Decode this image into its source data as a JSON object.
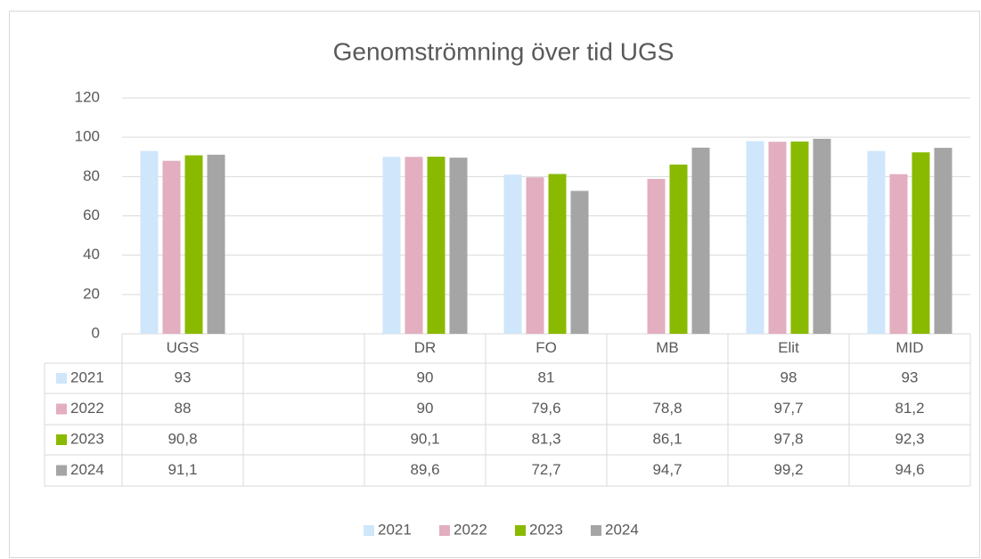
{
  "chart_data": {
    "type": "bar",
    "title": "Genomströmning över tid UGS",
    "categories": [
      "UGS",
      null,
      "DR",
      "FO",
      "MB",
      "Elit",
      "MID"
    ],
    "series": [
      {
        "name": "2021",
        "color": "#cfe6fb",
        "values": [
          93,
          null,
          90,
          81,
          null,
          98,
          93
        ],
        "value_labels": [
          "93",
          null,
          "90",
          "81",
          null,
          "98",
          "93"
        ]
      },
      {
        "name": "2022",
        "color": "#e2aec0",
        "values": [
          88,
          null,
          90,
          79.6,
          78.8,
          97.7,
          81.2
        ],
        "value_labels": [
          "88",
          null,
          "90",
          "79,6",
          "78,8",
          "97,7",
          "81,2"
        ]
      },
      {
        "name": "2023",
        "color": "#8aba00",
        "values": [
          90.8,
          null,
          90.1,
          81.3,
          86.1,
          97.8,
          92.3
        ],
        "value_labels": [
          "90,8",
          null,
          "90,1",
          "81,3",
          "86,1",
          "97,8",
          "92,3"
        ]
      },
      {
        "name": "2024",
        "color": "#a5a5a5",
        "values": [
          91.1,
          null,
          89.6,
          72.7,
          94.7,
          99.2,
          94.6
        ],
        "value_labels": [
          "91,1",
          null,
          "89,6",
          "72,7",
          "94,7",
          "99,2",
          "94,6"
        ]
      }
    ],
    "ylim": [
      0,
      120
    ],
    "yticks": [
      0,
      20,
      40,
      60,
      80,
      100,
      120
    ],
    "grid": true,
    "legend": "bottom"
  }
}
